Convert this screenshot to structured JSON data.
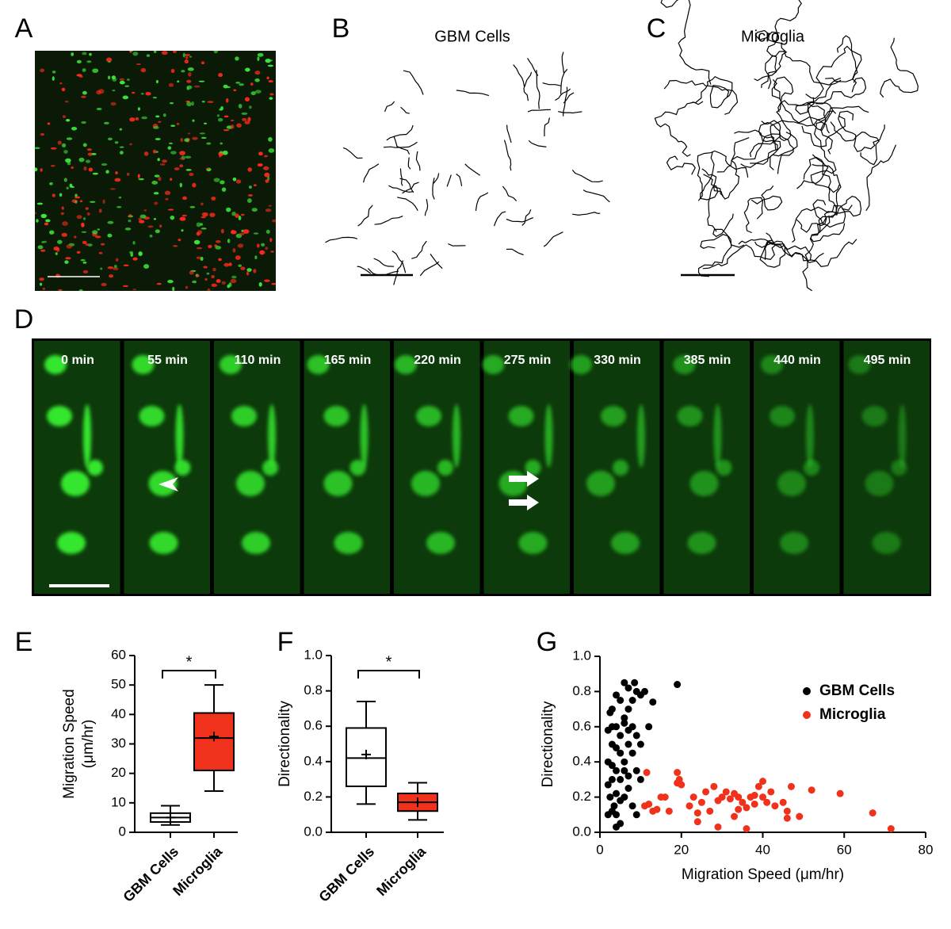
{
  "panel_labels": [
    "A",
    "B",
    "C",
    "D",
    "E",
    "F",
    "G"
  ],
  "track_titles": [
    "GBM Cells",
    "Microglia"
  ],
  "time_labels": [
    "0 min",
    "55 min",
    "110 min",
    "165 min",
    "220 min",
    "275 min",
    "330 min",
    "385 min",
    "440 min",
    "495 min"
  ],
  "chart_data": [
    {
      "type": "box",
      "ylabel": [
        "Migration Speed",
        "(μm/hr)"
      ],
      "annotation": "*",
      "categories": [
        "GBM Cells",
        "Microglia"
      ],
      "boxes": [
        {
          "whislo": 2.5,
          "q1": 3.5,
          "med": 5,
          "q3": 6.5,
          "whishi": 9,
          "mean": 5,
          "color": "#ffffff"
        },
        {
          "whislo": 14,
          "q1": 21,
          "med": 32,
          "q3": 40.5,
          "whishi": 50,
          "mean": 32.5,
          "color": "#f0321c"
        }
      ],
      "ylim": [
        0,
        60
      ],
      "yticks": [
        0,
        10,
        20,
        30,
        40,
        50,
        60
      ]
    },
    {
      "type": "box",
      "ylabel": [
        "Directionality"
      ],
      "annotation": "*",
      "categories": [
        "GBM Cells",
        "Microglia"
      ],
      "boxes": [
        {
          "whislo": 0.16,
          "q1": 0.26,
          "med": 0.42,
          "q3": 0.59,
          "whishi": 0.74,
          "mean": 0.44,
          "color": "#ffffff"
        },
        {
          "whislo": 0.07,
          "q1": 0.12,
          "med": 0.17,
          "q3": 0.22,
          "whishi": 0.28,
          "mean": 0.17,
          "color": "#f0321c"
        }
      ],
      "ylim": [
        0,
        1
      ],
      "yticks": [
        {
          "value": 0,
          "label": "0.0"
        },
        {
          "value": 0.2,
          "label": "0.2"
        },
        {
          "value": 0.4,
          "label": "0.4"
        },
        {
          "value": 0.6,
          "label": "0.6"
        },
        {
          "value": 0.8,
          "label": "0.8"
        },
        {
          "value": 1,
          "label": "1.0"
        }
      ]
    },
    {
      "type": "scatter",
      "xlabel": "Migration Speed (μm/hr)",
      "ylabel": "Directionality",
      "legend": "upper right",
      "xlim": [
        0,
        80
      ],
      "xticks": [
        0,
        20,
        40,
        60,
        80
      ],
      "ylim": [
        0,
        1
      ],
      "yticks": [
        {
          "value": 0,
          "label": "0.0"
        },
        {
          "value": 0.2,
          "label": "0.2"
        },
        {
          "value": 0.4,
          "label": "0.4"
        },
        {
          "value": 0.6,
          "label": "0.6"
        },
        {
          "value": 0.8,
          "label": "0.8"
        },
        {
          "value": 1,
          "label": "1.0"
        }
      ],
      "series": [
        {
          "name": "GBM Cells",
          "color": "#000000",
          "x": [
            2,
            2.5,
            3,
            3.5,
            4,
            2,
            3,
            4,
            5,
            6,
            7,
            8,
            9,
            6,
            7,
            8.5,
            11,
            10,
            12,
            13,
            19,
            3,
            4,
            5,
            5,
            6,
            7,
            8,
            9,
            10,
            4,
            3,
            2,
            2.5,
            5,
            6,
            7,
            8,
            9,
            5,
            3,
            4,
            2,
            6,
            7,
            8,
            9,
            10,
            4,
            3,
            5,
            6,
            7,
            4
          ],
          "values": [
            0.27,
            0.2,
            0.3,
            0.15,
            0.1,
            0.4,
            0.5,
            0.6,
            0.55,
            0.65,
            0.7,
            0.75,
            0.8,
            0.85,
            0.82,
            0.85,
            0.8,
            0.78,
            0.6,
            0.74,
            0.84,
            0.7,
            0.78,
            0.75,
            0.45,
            0.4,
            0.5,
            0.6,
            0.55,
            0.5,
            0.35,
            0.38,
            0.58,
            0.68,
            0.3,
            0.2,
            0.25,
            0.15,
            0.1,
            0.05,
            0.12,
            0.22,
            0.1,
            0.35,
            0.32,
            0.45,
            0.35,
            0.3,
            0.48,
            0.6,
            0.18,
            0.62,
            0.58,
            0.03
          ]
        },
        {
          "name": "Microglia",
          "color": "#f0321c",
          "x": [
            11.5,
            12,
            11,
            13,
            14,
            15,
            16,
            17,
            19,
            19.5,
            19,
            20,
            22,
            23,
            24,
            25,
            26,
            27,
            28,
            29,
            30,
            31,
            32,
            33,
            34,
            35,
            36,
            37,
            38,
            39,
            40,
            40,
            41,
            42,
            43,
            45,
            46,
            46,
            47,
            49,
            52,
            59,
            67,
            71.5,
            33,
            36,
            29,
            24,
            34,
            38
          ],
          "values": [
            0.34,
            0.16,
            0.15,
            0.12,
            0.13,
            0.2,
            0.2,
            0.12,
            0.34,
            0.3,
            0.28,
            0.27,
            0.15,
            0.2,
            0.11,
            0.17,
            0.23,
            0.12,
            0.26,
            0.18,
            0.2,
            0.23,
            0.19,
            0.22,
            0.2,
            0.17,
            0.14,
            0.2,
            0.16,
            0.26,
            0.29,
            0.2,
            0.17,
            0.23,
            0.15,
            0.17,
            0.12,
            0.08,
            0.26,
            0.09,
            0.24,
            0.22,
            0.11,
            0.02,
            0.09,
            0.02,
            0.03,
            0.06,
            0.13,
            0.21
          ]
        }
      ]
    }
  ]
}
